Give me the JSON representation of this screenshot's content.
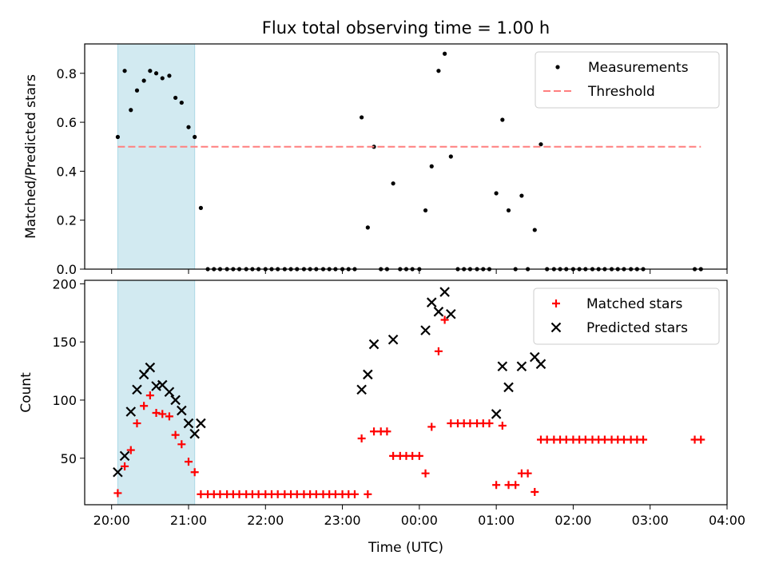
{
  "chart_data": {
    "title": "Flux total observing time = 1.00 h",
    "x_axis": {
      "label": "Time (UTC)",
      "unit": "hours after 20:00 UTC",
      "min": -0.35,
      "max": 8.0,
      "ticks": [
        {
          "value": 0,
          "label": "20:00"
        },
        {
          "value": 1,
          "label": "21:00"
        },
        {
          "value": 2,
          "label": "22:00"
        },
        {
          "value": 3,
          "label": "23:00"
        },
        {
          "value": 4,
          "label": "00:00"
        },
        {
          "value": 5,
          "label": "01:00"
        },
        {
          "value": 6,
          "label": "02:00"
        },
        {
          "value": 7,
          "label": "03:00"
        },
        {
          "value": 8,
          "label": "04:00"
        }
      ]
    },
    "highlight_band": {
      "x_start": 0.08,
      "x_end": 1.08,
      "color": "#add8e6"
    },
    "panels": [
      {
        "type": "scatter",
        "ylabel": "Matched/Predicted stars",
        "ylim": [
          0,
          0.92
        ],
        "yticks": [
          0.0,
          0.2,
          0.4,
          0.6,
          0.8
        ],
        "ytick_labels": [
          "0.0",
          "0.2",
          "0.4",
          "0.6",
          "0.8"
        ],
        "legend": "top-right",
        "series": [
          {
            "name": "Measurements",
            "marker": "dot",
            "color": "#000000",
            "points": [
              [
                0.08,
                0.54
              ],
              [
                0.17,
                0.81
              ],
              [
                0.25,
                0.65
              ],
              [
                0.33,
                0.73
              ],
              [
                0.42,
                0.77
              ],
              [
                0.5,
                0.81
              ],
              [
                0.58,
                0.8
              ],
              [
                0.66,
                0.78
              ],
              [
                0.75,
                0.79
              ],
              [
                0.83,
                0.7
              ],
              [
                0.91,
                0.68
              ],
              [
                1.0,
                0.58
              ],
              [
                1.08,
                0.54
              ],
              [
                1.16,
                0.25
              ],
              [
                1.25,
                0
              ],
              [
                1.33,
                0
              ],
              [
                1.41,
                0
              ],
              [
                1.5,
                0
              ],
              [
                1.58,
                0
              ],
              [
                1.66,
                0
              ],
              [
                1.75,
                0
              ],
              [
                1.83,
                0
              ],
              [
                1.91,
                0
              ],
              [
                2.0,
                0
              ],
              [
                2.08,
                0
              ],
              [
                2.16,
                0
              ],
              [
                2.25,
                0
              ],
              [
                2.33,
                0
              ],
              [
                2.41,
                0
              ],
              [
                2.5,
                0
              ],
              [
                2.58,
                0
              ],
              [
                2.66,
                0
              ],
              [
                2.75,
                0
              ],
              [
                2.83,
                0
              ],
              [
                2.91,
                0
              ],
              [
                3.0,
                0
              ],
              [
                3.08,
                0
              ],
              [
                3.16,
                0
              ],
              [
                3.25,
                0.62
              ],
              [
                3.33,
                0.17
              ],
              [
                3.41,
                0.5
              ],
              [
                3.5,
                0
              ],
              [
                3.58,
                0
              ],
              [
                3.66,
                0.35
              ],
              [
                3.75,
                0
              ],
              [
                3.83,
                0
              ],
              [
                3.91,
                0
              ],
              [
                4.0,
                0
              ],
              [
                4.08,
                0.24
              ],
              [
                4.16,
                0.42
              ],
              [
                4.25,
                0.81
              ],
              [
                4.33,
                0.88
              ],
              [
                4.41,
                0.46
              ],
              [
                4.5,
                0
              ],
              [
                4.58,
                0
              ],
              [
                4.66,
                0
              ],
              [
                4.75,
                0
              ],
              [
                4.83,
                0
              ],
              [
                4.91,
                0
              ],
              [
                5.0,
                0.31
              ],
              [
                5.08,
                0.61
              ],
              [
                5.16,
                0.24
              ],
              [
                5.25,
                0
              ],
              [
                5.33,
                0.3
              ],
              [
                5.41,
                0
              ],
              [
                5.5,
                0.16
              ],
              [
                5.58,
                0.51
              ],
              [
                5.66,
                0
              ],
              [
                5.75,
                0
              ],
              [
                5.83,
                0
              ],
              [
                5.91,
                0
              ],
              [
                6.0,
                0
              ],
              [
                6.08,
                0
              ],
              [
                6.16,
                0
              ],
              [
                6.25,
                0
              ],
              [
                6.33,
                0
              ],
              [
                6.41,
                0
              ],
              [
                6.5,
                0
              ],
              [
                6.58,
                0
              ],
              [
                6.66,
                0
              ],
              [
                6.75,
                0
              ],
              [
                6.83,
                0
              ],
              [
                6.91,
                0
              ],
              [
                7.58,
                0
              ],
              [
                7.66,
                0
              ]
            ]
          },
          {
            "name": "Threshold",
            "marker": "dashed-line",
            "color": "#ff7f7f",
            "points": [
              [
                0.08,
                0.5
              ],
              [
                7.66,
                0.5
              ]
            ]
          }
        ]
      },
      {
        "type": "scatter",
        "ylabel": "Count",
        "ylim": [
          10,
          203
        ],
        "yticks": [
          50,
          100,
          150,
          200
        ],
        "ytick_labels": [
          "50",
          "100",
          "150",
          "200"
        ],
        "legend": "top-right",
        "series": [
          {
            "name": "Matched stars",
            "marker": "plus",
            "color": "#ff0000",
            "points": [
              [
                0.08,
                20
              ],
              [
                0.17,
                43
              ],
              [
                0.25,
                57
              ],
              [
                0.33,
                80
              ],
              [
                0.42,
                95
              ],
              [
                0.5,
                104
              ],
              [
                0.58,
                89
              ],
              [
                0.66,
                88
              ],
              [
                0.75,
                86
              ],
              [
                0.83,
                70
              ],
              [
                0.91,
                62
              ],
              [
                1.0,
                47
              ],
              [
                1.08,
                38
              ],
              [
                1.16,
                19
              ],
              [
                1.25,
                19
              ],
              [
                1.33,
                19
              ],
              [
                1.41,
                19
              ],
              [
                1.5,
                19
              ],
              [
                1.58,
                19
              ],
              [
                1.66,
                19
              ],
              [
                1.75,
                19
              ],
              [
                1.83,
                19
              ],
              [
                1.91,
                19
              ],
              [
                2.0,
                19
              ],
              [
                2.08,
                19
              ],
              [
                2.16,
                19
              ],
              [
                2.25,
                19
              ],
              [
                2.33,
                19
              ],
              [
                2.41,
                19
              ],
              [
                2.5,
                19
              ],
              [
                2.58,
                19
              ],
              [
                2.66,
                19
              ],
              [
                2.75,
                19
              ],
              [
                2.83,
                19
              ],
              [
                2.91,
                19
              ],
              [
                3.0,
                19
              ],
              [
                3.08,
                19
              ],
              [
                3.16,
                19
              ],
              [
                3.25,
                67
              ],
              [
                3.33,
                19
              ],
              [
                3.41,
                73
              ],
              [
                3.5,
                73
              ],
              [
                3.58,
                73
              ],
              [
                3.66,
                52
              ],
              [
                3.75,
                52
              ],
              [
                3.83,
                52
              ],
              [
                3.91,
                52
              ],
              [
                4.0,
                52
              ],
              [
                4.08,
                37
              ],
              [
                4.16,
                77
              ],
              [
                4.25,
                142
              ],
              [
                4.33,
                169
              ],
              [
                4.41,
                80
              ],
              [
                4.5,
                80
              ],
              [
                4.58,
                80
              ],
              [
                4.66,
                80
              ],
              [
                4.75,
                80
              ],
              [
                4.83,
                80
              ],
              [
                4.91,
                80
              ],
              [
                5.0,
                27
              ],
              [
                5.08,
                78
              ],
              [
                5.16,
                27
              ],
              [
                5.25,
                27
              ],
              [
                5.33,
                37
              ],
              [
                5.41,
                37
              ],
              [
                5.5,
                21
              ],
              [
                5.58,
                66
              ],
              [
                5.66,
                66
              ],
              [
                5.75,
                66
              ],
              [
                5.83,
                66
              ],
              [
                5.91,
                66
              ],
              [
                6.0,
                66
              ],
              [
                6.08,
                66
              ],
              [
                6.16,
                66
              ],
              [
                6.25,
                66
              ],
              [
                6.33,
                66
              ],
              [
                6.41,
                66
              ],
              [
                6.5,
                66
              ],
              [
                6.58,
                66
              ],
              [
                6.66,
                66
              ],
              [
                6.75,
                66
              ],
              [
                6.83,
                66
              ],
              [
                6.91,
                66
              ],
              [
                7.58,
                66
              ],
              [
                7.66,
                66
              ]
            ]
          },
          {
            "name": "Predicted stars",
            "marker": "cross",
            "color": "#000000",
            "points": [
              [
                0.08,
                38
              ],
              [
                0.17,
                52
              ],
              [
                0.25,
                90
              ],
              [
                0.33,
                109
              ],
              [
                0.42,
                122
              ],
              [
                0.5,
                128
              ],
              [
                0.58,
                112
              ],
              [
                0.66,
                113
              ],
              [
                0.75,
                107
              ],
              [
                0.83,
                100
              ],
              [
                0.91,
                91
              ],
              [
                1.0,
                80
              ],
              [
                1.08,
                71
              ],
              [
                1.16,
                80
              ],
              [
                3.25,
                109
              ],
              [
                3.33,
                122
              ],
              [
                3.41,
                148
              ],
              [
                3.66,
                152
              ],
              [
                4.08,
                160
              ],
              [
                4.16,
                184
              ],
              [
                4.25,
                176
              ],
              [
                4.33,
                193
              ],
              [
                4.41,
                174
              ],
              [
                5.0,
                88
              ],
              [
                5.08,
                129
              ],
              [
                5.16,
                111
              ],
              [
                5.33,
                129
              ],
              [
                5.5,
                137
              ],
              [
                5.58,
                131
              ]
            ]
          }
        ]
      }
    ]
  }
}
